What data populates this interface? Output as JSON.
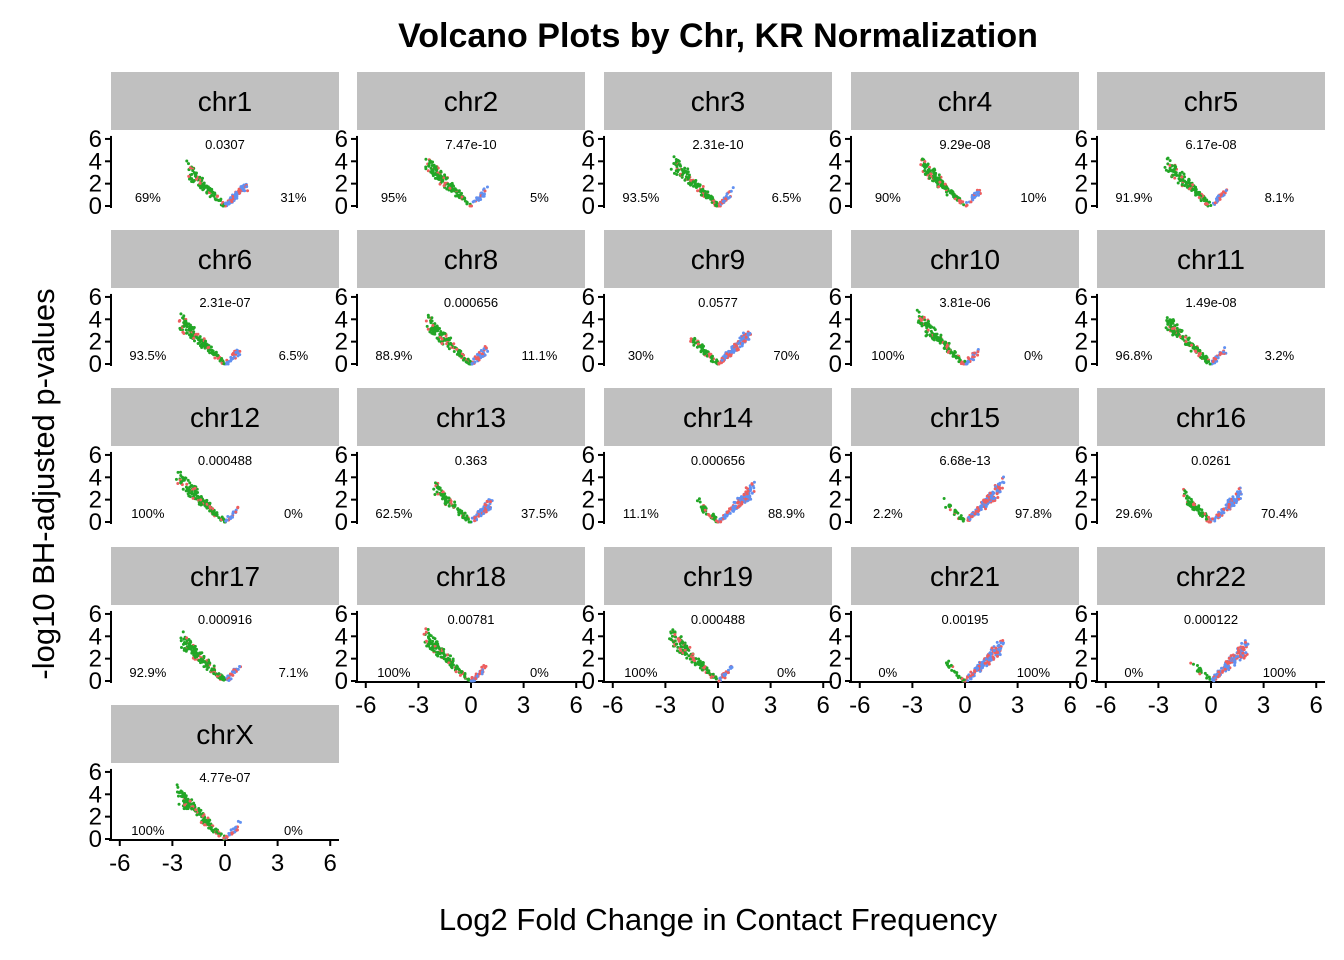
{
  "chart_data": {
    "type": "scatter",
    "title": "Volcano Plots by Chr, KR Normalization",
    "xlabel": "Log2 Fold Change in Contact Frequency",
    "ylabel": "-log10 BH-adjusted p-values",
    "xlim": [
      -6.5,
      6.5
    ],
    "ylim": [
      0,
      6.8
    ],
    "x_ticks": [
      "-6",
      "-3",
      "0",
      "3",
      "6"
    ],
    "y_ticks": [
      "0",
      "2",
      "4",
      "6"
    ],
    "grid": false,
    "legend": "none",
    "colors": {
      "strip": "#c0c0c0",
      "green": "#22a626",
      "red": "#ee5e5e",
      "blue": "#6190f1"
    },
    "panels": [
      {
        "label": "chr1",
        "pvalue": "0.0307",
        "left_pct": "69%",
        "right_pct": "31%"
      },
      {
        "label": "chr2",
        "pvalue": "7.47e-10",
        "left_pct": "95%",
        "right_pct": "5%"
      },
      {
        "label": "chr3",
        "pvalue": "2.31e-10",
        "left_pct": "93.5%",
        "right_pct": "6.5%"
      },
      {
        "label": "chr4",
        "pvalue": "9.29e-08",
        "left_pct": "90%",
        "right_pct": "10%"
      },
      {
        "label": "chr5",
        "pvalue": "6.17e-08",
        "left_pct": "91.9%",
        "right_pct": "8.1%"
      },
      {
        "label": "chr6",
        "pvalue": "2.31e-07",
        "left_pct": "93.5%",
        "right_pct": "6.5%"
      },
      {
        "label": "chr8",
        "pvalue": "0.000656",
        "left_pct": "88.9%",
        "right_pct": "11.1%"
      },
      {
        "label": "chr9",
        "pvalue": "0.0577",
        "left_pct": "30%",
        "right_pct": "70%"
      },
      {
        "label": "chr10",
        "pvalue": "3.81e-06",
        "left_pct": "100%",
        "right_pct": "0%"
      },
      {
        "label": "chr11",
        "pvalue": "1.49e-08",
        "left_pct": "96.8%",
        "right_pct": "3.2%"
      },
      {
        "label": "chr12",
        "pvalue": "0.000488",
        "left_pct": "100%",
        "right_pct": "0%"
      },
      {
        "label": "chr13",
        "pvalue": "0.363",
        "left_pct": "62.5%",
        "right_pct": "37.5%"
      },
      {
        "label": "chr14",
        "pvalue": "0.000656",
        "left_pct": "11.1%",
        "right_pct": "88.9%"
      },
      {
        "label": "chr15",
        "pvalue": "6.68e-13",
        "left_pct": "2.2%",
        "right_pct": "97.8%"
      },
      {
        "label": "chr16",
        "pvalue": "0.0261",
        "left_pct": "29.6%",
        "right_pct": "70.4%"
      },
      {
        "label": "chr17",
        "pvalue": "0.000916",
        "left_pct": "92.9%",
        "right_pct": "7.1%"
      },
      {
        "label": "chr18",
        "pvalue": "0.00781",
        "left_pct": "100%",
        "right_pct": "0%"
      },
      {
        "label": "chr19",
        "pvalue": "0.000488",
        "left_pct": "100%",
        "right_pct": "0%"
      },
      {
        "label": "chr21",
        "pvalue": "0.00195",
        "left_pct": "0%",
        "right_pct": "100%"
      },
      {
        "label": "chr22",
        "pvalue": "0.000122",
        "left_pct": "0%",
        "right_pct": "100%"
      },
      {
        "label": "chrX",
        "pvalue": "4.77e-07",
        "left_pct": "100%",
        "right_pct": "0%"
      }
    ]
  }
}
